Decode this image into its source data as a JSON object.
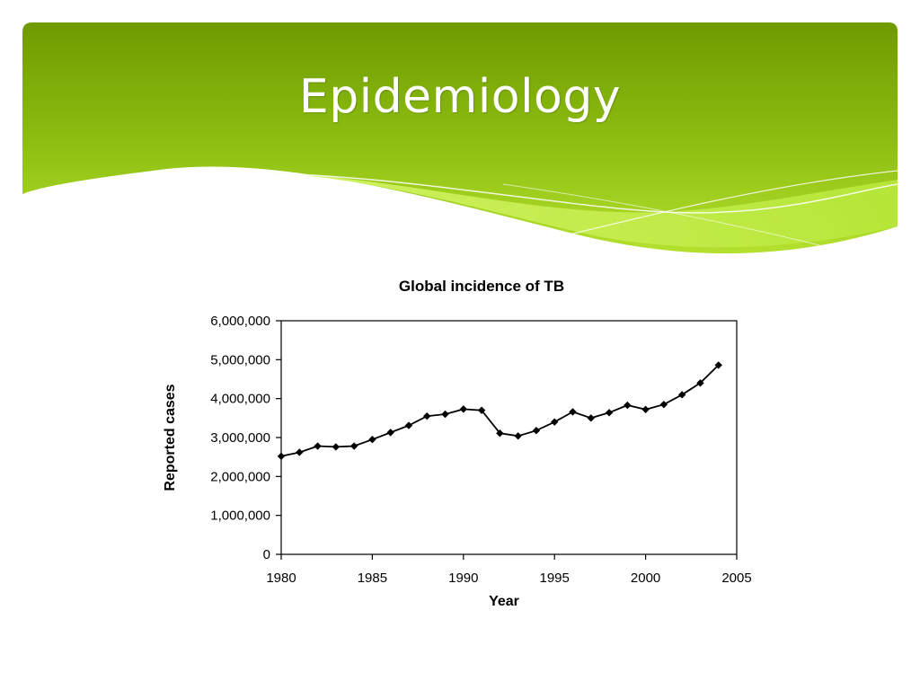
{
  "slide": {
    "title": "Epidemiology"
  },
  "colors": {
    "banner_dark": "#6f9a00",
    "banner_light": "#b4e02f",
    "wave_light": "#c8ef4a",
    "line": "#000000"
  },
  "chart_data": {
    "type": "line",
    "title": "Global incidence of TB",
    "xlabel": "Year",
    "ylabel": "Reported cases",
    "xlim": [
      1980,
      2005
    ],
    "ylim": [
      0,
      6000000
    ],
    "xticks": [
      1980,
      1985,
      1990,
      1995,
      2000,
      2005
    ],
    "yticks": [
      0,
      1000000,
      2000000,
      3000000,
      4000000,
      5000000,
      6000000
    ],
    "xtick_labels": [
      "1980",
      "1985",
      "1990",
      "1995",
      "2000",
      "2005"
    ],
    "ytick_labels": [
      "0",
      "1,000,000",
      "2,000,000",
      "3,000,000",
      "4,000,000",
      "5,000,000",
      "6,000,000"
    ],
    "marker": "diamond",
    "series": [
      {
        "name": "Reported cases",
        "x": [
          1980,
          1981,
          1982,
          1983,
          1984,
          1985,
          1986,
          1987,
          1988,
          1989,
          1990,
          1991,
          1992,
          1993,
          1994,
          1995,
          1996,
          1997,
          1998,
          1999,
          2000,
          2001,
          2002,
          2003,
          2004
        ],
        "values": [
          2520000,
          2620000,
          2780000,
          2760000,
          2780000,
          2950000,
          3130000,
          3310000,
          3550000,
          3600000,
          3730000,
          3700000,
          3110000,
          3040000,
          3180000,
          3400000,
          3660000,
          3500000,
          3640000,
          3830000,
          3720000,
          3850000,
          4100000,
          4400000,
          4860000
        ]
      }
    ]
  }
}
